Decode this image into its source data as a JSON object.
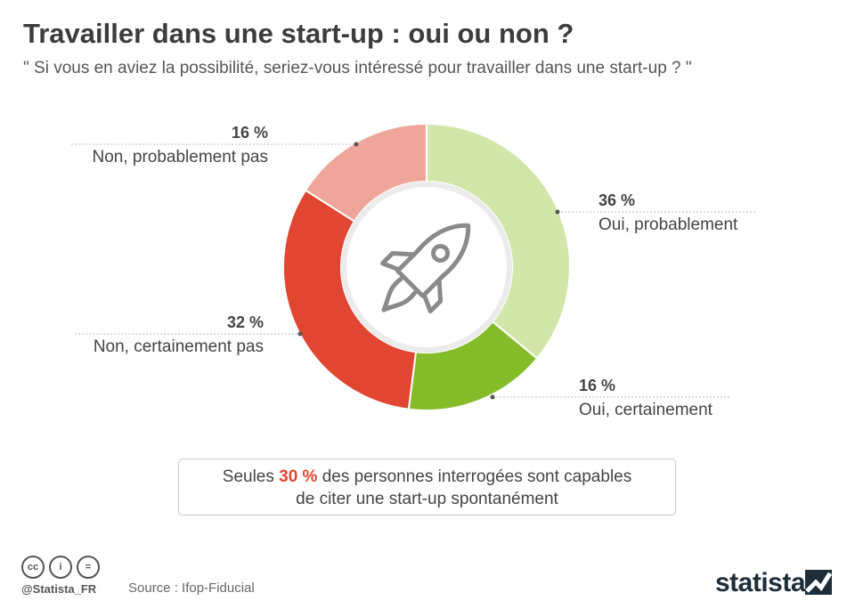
{
  "title": "Travailler dans une start-up : oui ou non ?",
  "subtitle": "\" Si vous en aviez la possibilité, seriez-vous intéressé pour travailler dans une start-up ? \"",
  "chart_data": {
    "type": "pie",
    "variant": "donut",
    "title": "Travailler dans une start-up : oui ou non ?",
    "subtitle": "\" Si vous en aviez la possibilité, seriez-vous intéressé pour travailler dans une start-up ? \"",
    "unit": "%",
    "slices": [
      {
        "label": "Oui, probablement",
        "value": 36,
        "value_label": "36 %",
        "color": "#d3e6a9"
      },
      {
        "label": "Oui, certainement",
        "value": 16,
        "value_label": "16 %",
        "color": "#86bc2a"
      },
      {
        "label": "Non, certainement pas",
        "value": 32,
        "value_label": "32 %",
        "color": "#e04632"
      },
      {
        "label": "Non, probablement pas",
        "value": 16,
        "value_label": "16 %",
        "color": "#f0a59a"
      }
    ],
    "center_icon": "rocket-icon"
  },
  "note": {
    "before": "Seules ",
    "highlight": "30 %",
    "after_line1": " des personnes interrogées sont capables",
    "line2": "de citer une start-up spontanément",
    "highlight_color": "#e0452f"
  },
  "footer": {
    "license_icons": [
      "cc-icon",
      "by-icon",
      "nd-icon"
    ],
    "license_glyphs": [
      "cc",
      "i",
      "="
    ],
    "handle": "@Statista_FR",
    "source": "Source : Ifop-Fiducial",
    "brand": "statista"
  }
}
